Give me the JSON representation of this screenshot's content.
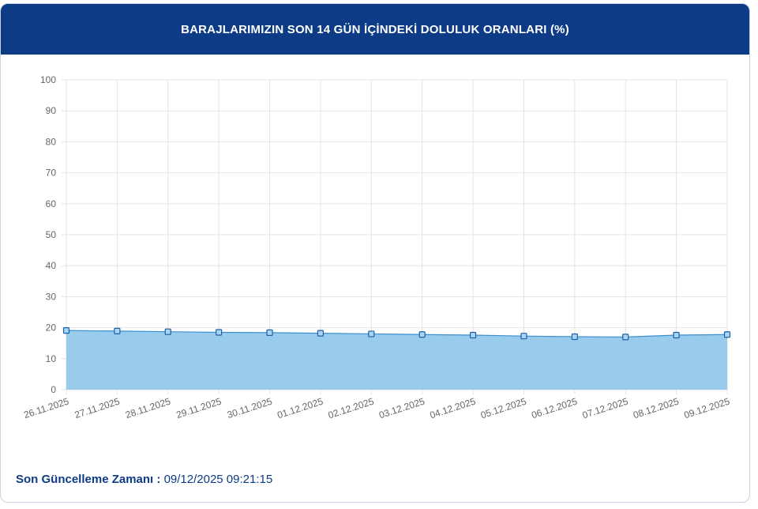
{
  "header": {
    "title": "BARAJLARIMIZIN SON 14 GÜN İÇİNDEKİ DOLULUK ORANLARI (%)"
  },
  "footer": {
    "label": "Son Güncelleme Zamanı :",
    "value": "09/12/2025 09:21:15"
  },
  "colors": {
    "header_bg": "#0d3b85",
    "area_fill": "#99ccec",
    "line": "#3a8fd0",
    "marker_fill": "#a9d4f3",
    "marker_stroke": "#1d5fa5"
  },
  "chart_data": {
    "type": "area",
    "x": [
      "26.11.2025",
      "27.11.2025",
      "28.11.2025",
      "29.11.2025",
      "30.11.2025",
      "01.12.2025",
      "02.12.2025",
      "03.12.2025",
      "04.12.2025",
      "05.12.2025",
      "06.12.2025",
      "07.12.2025",
      "08.12.2025",
      "09.12.2025"
    ],
    "series": [
      {
        "values": [
          19.1,
          18.9,
          18.7,
          18.5,
          18.4,
          18.2,
          18.0,
          17.8,
          17.6,
          17.3,
          17.1,
          17.0,
          17.6,
          17.8
        ]
      }
    ],
    "ylim": [
      0,
      100
    ],
    "yticks": [
      0,
      10,
      20,
      30,
      40,
      50,
      60,
      70,
      80,
      90,
      100
    ],
    "grid": true,
    "title": "",
    "xlabel": "",
    "ylabel": ""
  }
}
